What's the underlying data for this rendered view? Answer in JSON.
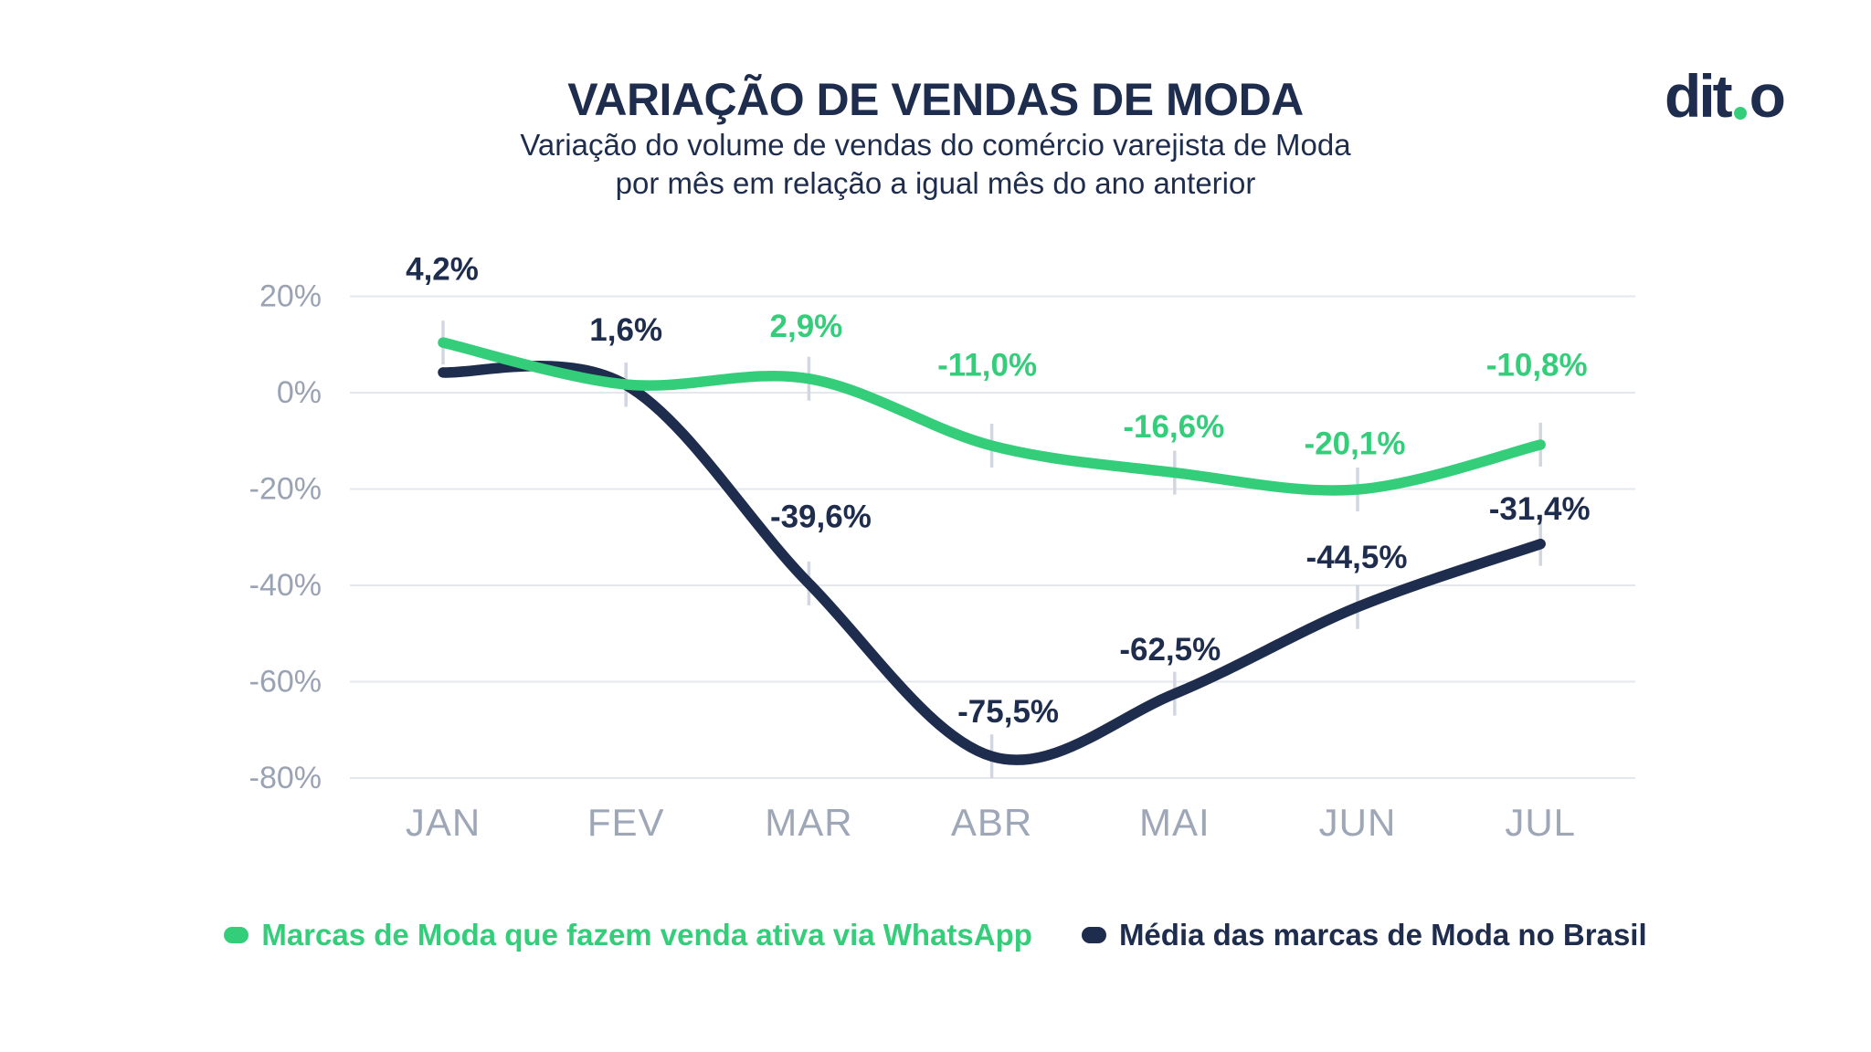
{
  "header": {
    "title": "VARIAÇÃO DE VENDAS DE MODA",
    "subtitle_line1": "Variação do volume de vendas do comércio varejista de Moda",
    "subtitle_line2": "por mês em relação a igual mês do ano anterior",
    "logo_left": "dit",
    "logo_right": "o"
  },
  "colors": {
    "navy": "#1E2D4D",
    "green": "#34CE7B",
    "axis_label_gray": "#9AA3B4",
    "month_label_gray": "#9EA7B8",
    "gridline": "#E4E7EC",
    "point_tick": "#D2D7DF",
    "background": "#FFFFFF"
  },
  "chart_data": {
    "type": "line",
    "categories": [
      "JAN",
      "FEV",
      "MAR",
      "ABR",
      "MAI",
      "JUN",
      "JUL"
    ],
    "y_ticks": [
      {
        "value": 20,
        "label": "20%"
      },
      {
        "value": 0,
        "label": "0%"
      },
      {
        "value": -20,
        "label": "-20%"
      },
      {
        "value": -40,
        "label": "-40%"
      },
      {
        "value": -60,
        "label": "-60%"
      },
      {
        "value": -80,
        "label": "-80%"
      }
    ],
    "ylim": [
      -80,
      20
    ],
    "grid": "horizontal-only",
    "legend_position": "bottom",
    "series": [
      {
        "name": "Média das marcas de Moda no Brasil",
        "color": "#1E2D4D",
        "values": [
          4.2,
          1.6,
          -39.6,
          -75.5,
          -62.5,
          -44.5,
          -31.4
        ],
        "point_labels": [
          "4,2%",
          "1,6%",
          "-39,6%",
          "-75,5%",
          "-62,5%",
          "-44,5%",
          "-31,4%"
        ]
      },
      {
        "name": "Marcas de Moda que fazem venda ativa via WhatsApp",
        "color": "#34CE7B",
        "values": [
          10.4,
          1.7,
          2.9,
          -11.0,
          -16.6,
          -20.1,
          -10.8
        ],
        "point_labels": [
          null,
          null,
          "2,9%",
          "-11,0%",
          "-16,6%",
          "-20,1%",
          "-10,8%"
        ]
      }
    ]
  }
}
